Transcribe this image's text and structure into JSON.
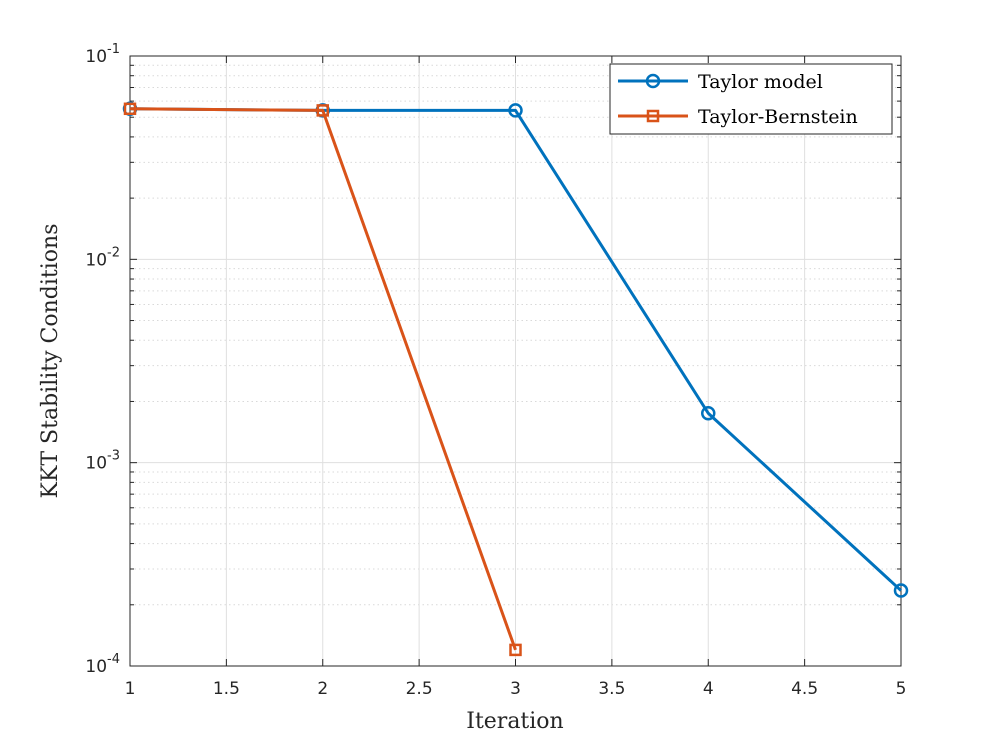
{
  "chart_data": {
    "type": "line",
    "title": "",
    "xlabel": "Iteration",
    "ylabel": "KKT Stability Conditions",
    "xlim": [
      1,
      5
    ],
    "ylim": [
      0.0001,
      0.1
    ],
    "yscale": "log",
    "grid": true,
    "minor_grid": true,
    "legend_position": "top-right",
    "x_ticks": [
      "1",
      "1.5",
      "2",
      "2.5",
      "3",
      "3.5",
      "4",
      "4.5",
      "5"
    ],
    "y_ticks": [
      {
        "base": "10",
        "exp": "-4"
      },
      {
        "base": "10",
        "exp": "-3"
      },
      {
        "base": "10",
        "exp": "-2"
      },
      {
        "base": "10",
        "exp": "-1"
      }
    ],
    "series": [
      {
        "name": "Taylor model",
        "color": "#0072BD",
        "marker": "circle",
        "x": [
          1,
          2,
          3,
          4,
          5
        ],
        "y": [
          0.055,
          0.054,
          0.054,
          0.00175,
          0.000235
        ]
      },
      {
        "name": "Taylor-Bernstein",
        "color": "#D95319",
        "marker": "square",
        "x": [
          1,
          2,
          3
        ],
        "y": [
          0.055,
          0.054,
          0.00012
        ]
      }
    ]
  }
}
